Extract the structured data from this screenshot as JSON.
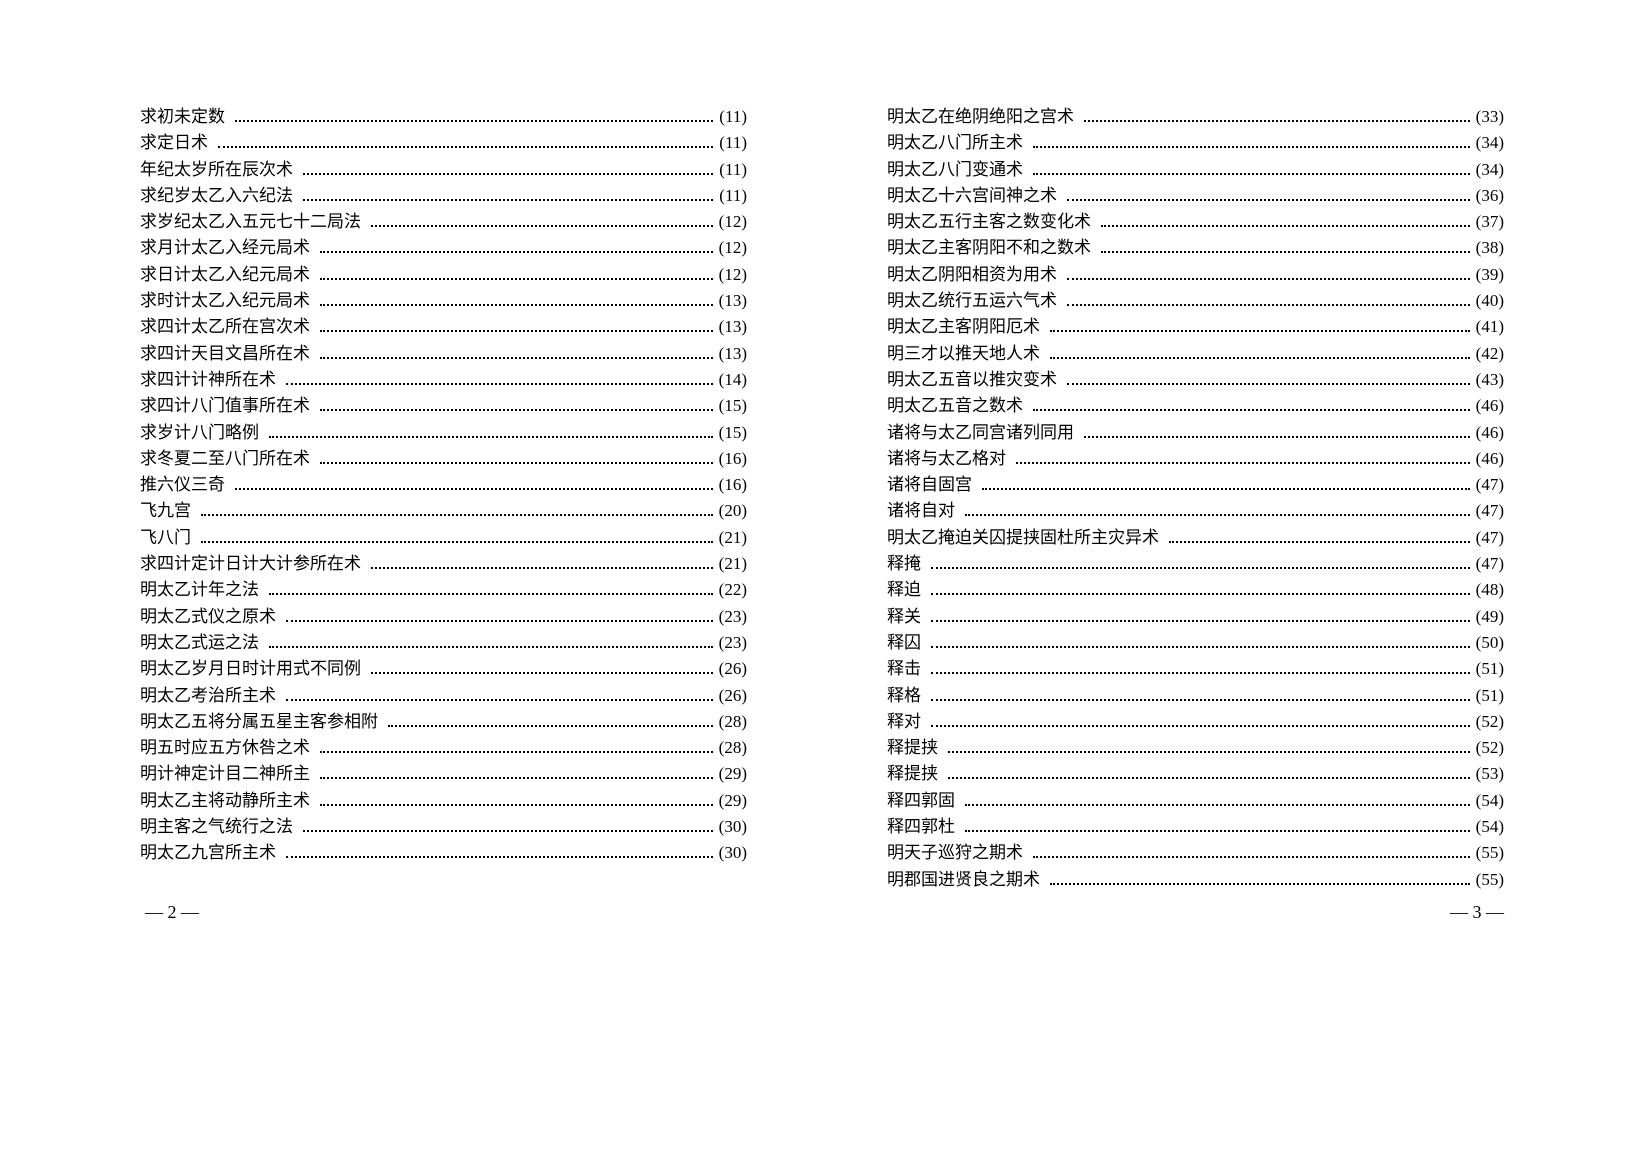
{
  "left_page": {
    "entries": [
      {
        "title": "求初未定数",
        "page": "(11)"
      },
      {
        "title": "求定日术",
        "page": "(11)"
      },
      {
        "title": "年纪太岁所在辰次术",
        "page": "(11)"
      },
      {
        "title": "求纪岁太乙入六纪法",
        "page": "(11)"
      },
      {
        "title": "求岁纪太乙入五元七十二局法",
        "page": "(12)"
      },
      {
        "title": "求月计太乙入经元局术",
        "page": "(12)"
      },
      {
        "title": "求日计太乙入纪元局术",
        "page": "(12)"
      },
      {
        "title": "求时计太乙入纪元局术",
        "page": "(13)"
      },
      {
        "title": "求四计太乙所在宫次术",
        "page": "(13)"
      },
      {
        "title": "求四计天目文昌所在术",
        "page": "(13)"
      },
      {
        "title": "求四计计神所在术",
        "page": "(14)"
      },
      {
        "title": "求四计八门值事所在术",
        "page": "(15)"
      },
      {
        "title": "求岁计八门略例",
        "page": "(15)"
      },
      {
        "title": "求冬夏二至八门所在术",
        "page": "(16)"
      },
      {
        "title": "推六仪三奇",
        "page": "(16)"
      },
      {
        "title": "飞九宫",
        "page": "(20)"
      },
      {
        "title": "飞八门",
        "page": "(21)"
      },
      {
        "title": "求四计定计日计大计参所在术",
        "page": "(21)"
      },
      {
        "title": "明太乙计年之法",
        "page": "(22)"
      },
      {
        "title": "明太乙式仪之原术",
        "page": "(23)"
      },
      {
        "title": "明太乙式运之法",
        "page": "(23)"
      },
      {
        "title": "明太乙岁月日时计用式不同例",
        "page": "(26)"
      },
      {
        "title": "明太乙考治所主术",
        "page": "(26)"
      },
      {
        "title": "明太乙五将分属五星主客参相附",
        "page": "(28)"
      },
      {
        "title": "明五时应五方休咎之术",
        "page": "(28)"
      },
      {
        "title": "明计神定计目二神所主",
        "page": "(29)"
      },
      {
        "title": "明太乙主将动静所主术",
        "page": "(29)"
      },
      {
        "title": "明主客之气统行之法",
        "page": "(30)"
      },
      {
        "title": "明太乙九宫所主术",
        "page": "(30)"
      }
    ],
    "page_number": "— 2 —"
  },
  "right_page": {
    "entries": [
      {
        "title": "明太乙在绝阴绝阳之宫术",
        "page": "(33)"
      },
      {
        "title": "明太乙八门所主术",
        "page": "(34)"
      },
      {
        "title": "明太乙八门变通术",
        "page": "(34)"
      },
      {
        "title": "明太乙十六宫间神之术",
        "page": "(36)"
      },
      {
        "title": "明太乙五行主客之数变化术",
        "page": "(37)"
      },
      {
        "title": "明太乙主客阴阳不和之数术",
        "page": "(38)"
      },
      {
        "title": "明太乙阴阳相资为用术",
        "page": "(39)"
      },
      {
        "title": "明太乙统行五运六气术",
        "page": "(40)"
      },
      {
        "title": "明太乙主客阴阳厄术",
        "page": "(41)"
      },
      {
        "title": "明三才以推天地人术",
        "page": "(42)"
      },
      {
        "title": "明太乙五音以推灾变术",
        "page": "(43)"
      },
      {
        "title": "明太乙五音之数术",
        "page": "(46)"
      },
      {
        "title": "诸将与太乙同宫诸列同用",
        "page": "(46)"
      },
      {
        "title": "诸将与太乙格对",
        "page": "(46)"
      },
      {
        "title": "诸将自固宫",
        "page": "(47)"
      },
      {
        "title": "诸将自对",
        "page": "(47)"
      },
      {
        "title": "明太乙掩迫关囚提挟固杜所主灾异术",
        "page": "(47)"
      },
      {
        "title": "释掩",
        "page": "(47)"
      },
      {
        "title": "释迫",
        "page": "(48)"
      },
      {
        "title": "释关",
        "page": "(49)"
      },
      {
        "title": "释囚",
        "page": "(50)"
      },
      {
        "title": "释击",
        "page": "(51)"
      },
      {
        "title": "释格",
        "page": "(51)"
      },
      {
        "title": "释对",
        "page": "(52)"
      },
      {
        "title": "释提挟",
        "page": "(52)"
      },
      {
        "title": "释提挟",
        "page": "(53)"
      },
      {
        "title": "释四郭固",
        "page": "(54)"
      },
      {
        "title": "释四郭杜",
        "page": "(54)"
      },
      {
        "title": "明天子巡狩之期术",
        "page": "(55)"
      },
      {
        "title": "明郡国进贤良之期术",
        "page": "(55)"
      }
    ],
    "page_number": "— 3 —"
  }
}
